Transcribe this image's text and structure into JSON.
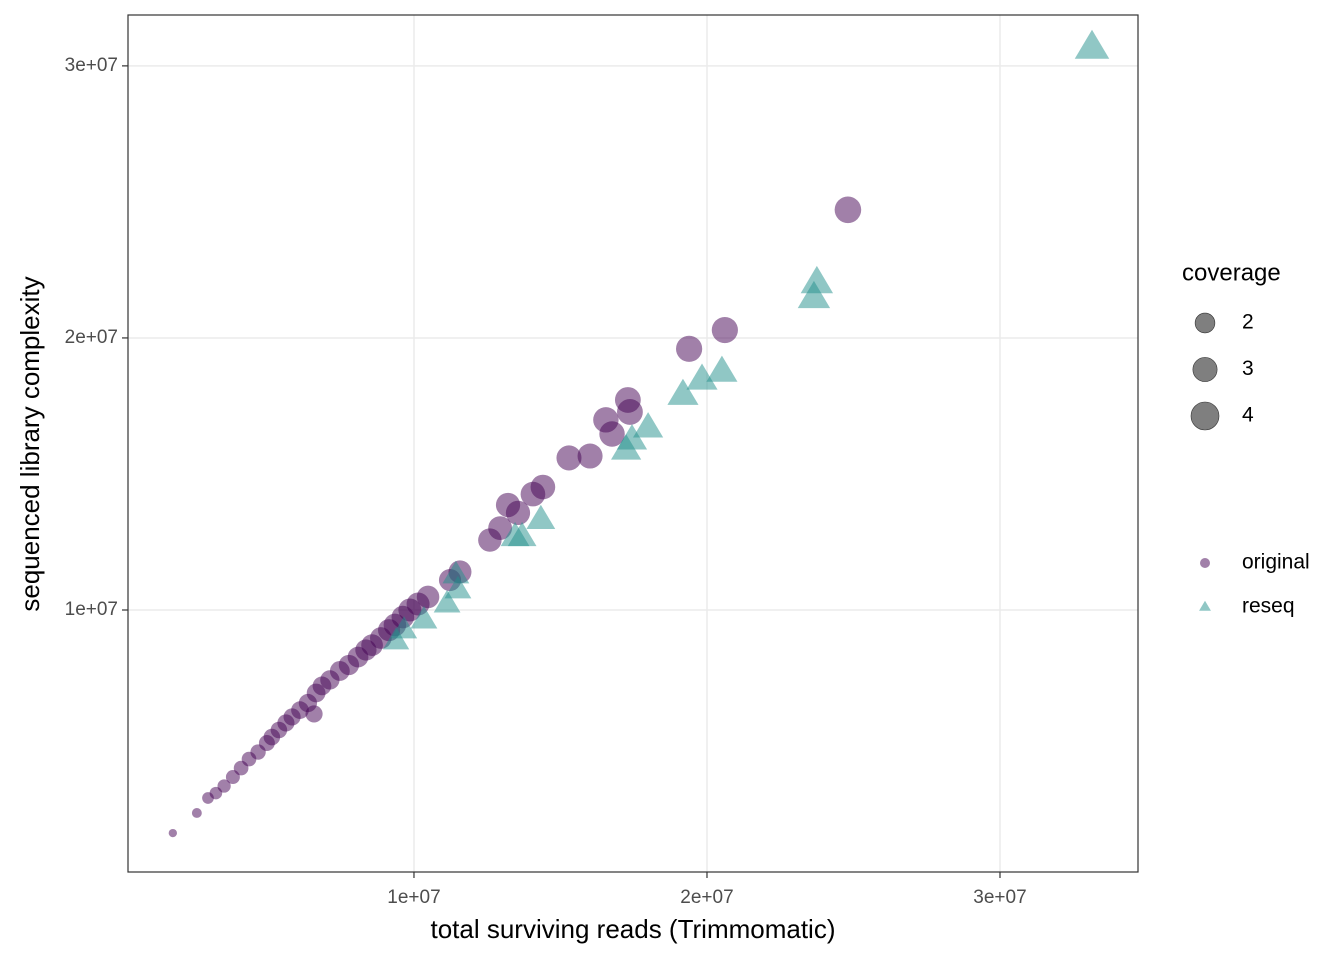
{
  "chart_data": {
    "type": "scatter",
    "x_label": "total surviving reads (Trimmomatic)",
    "y_label": "sequenced library complexity",
    "xlim": [
      240000,
      34710000
    ],
    "ylim": [
      370000,
      31870000
    ],
    "xticks": [
      {
        "value": 10000000,
        "label": "1e+07"
      },
      {
        "value": 20000000,
        "label": "2e+07"
      },
      {
        "value": 30000000,
        "label": "3e+07"
      }
    ],
    "yticks": [
      {
        "value": 10000000,
        "label": "1e+07"
      },
      {
        "value": 20000000,
        "label": "2e+07"
      },
      {
        "value": 30000000,
        "label": "3e+07"
      }
    ],
    "grid": true,
    "size_title": "coverage",
    "size_breaks": [
      2,
      3,
      4
    ],
    "series": [
      {
        "name": "original",
        "color": "#440154",
        "shape": "circle",
        "x": [
          1770000,
          2590000,
          2970000,
          3240000,
          3520000,
          3820000,
          4100000,
          4370000,
          4680000,
          4980000,
          5150000,
          5390000,
          5630000,
          5840000,
          6110000,
          6380000,
          6660000,
          6590000,
          6860000,
          7130000,
          7470000,
          7780000,
          8090000,
          8360000,
          8570000,
          8870000,
          9150000,
          9350000,
          9620000,
          9860000,
          10140000,
          10480000,
          11230000,
          11570000,
          12590000,
          12940000,
          13210000,
          13550000,
          14060000,
          14400000,
          15290000,
          16010000,
          16550000,
          16760000,
          17300000,
          17370000,
          19390000,
          20610000,
          24810000
        ],
        "values": [
          1800000,
          2540000,
          3090000,
          3270000,
          3530000,
          3860000,
          4190000,
          4520000,
          4780000,
          5110000,
          5330000,
          5590000,
          5850000,
          6070000,
          6320000,
          6580000,
          6950000,
          6180000,
          7210000,
          7430000,
          7760000,
          7980000,
          8270000,
          8530000,
          8710000,
          8970000,
          9260000,
          9450000,
          9740000,
          10000000,
          10220000,
          10480000,
          11100000,
          11400000,
          12570000,
          13010000,
          13860000,
          13570000,
          14260000,
          14520000,
          15590000,
          15660000,
          16990000,
          16470000,
          17720000,
          17280000,
          19600000,
          20290000,
          24710000
        ],
        "sizes": [
          0.35,
          0.5,
          0.7,
          0.8,
          0.9,
          1,
          1.1,
          1.1,
          1.2,
          1.3,
          1.4,
          1.4,
          1.5,
          1.5,
          1.6,
          1.7,
          1.8,
          1.5,
          1.8,
          1.9,
          2,
          2.1,
          2.2,
          2.3,
          2.4,
          2.4,
          2.5,
          2.6,
          2.6,
          2.7,
          2.7,
          2.6,
          2.5,
          2.7,
          2.8,
          2.9,
          3,
          3,
          3.1,
          3.1,
          3.2,
          3.2,
          3.3,
          3.3,
          3.4,
          3.4,
          3.5,
          3.5,
          3.6
        ]
      },
      {
        "name": "reseq",
        "color": "#21908C",
        "shape": "triangle",
        "x": [
          9390000,
          9660000,
          10340000,
          11130000,
          11500000,
          11430000,
          13450000,
          13690000,
          14330000,
          17240000,
          17440000,
          17990000,
          19180000,
          19830000,
          20510000,
          23650000,
          23750000,
          33140000
        ],
        "values": [
          8860000,
          9260000,
          9630000,
          10220000,
          10740000,
          11290000,
          12680000,
          12680000,
          13310000,
          15880000,
          16250000,
          16690000,
          17900000,
          18460000,
          18750000,
          21470000,
          22020000,
          30660000
        ],
        "sizes": [
          2.5,
          2.5,
          2.6,
          2.6,
          2.6,
          2.6,
          3,
          3,
          3,
          3.3,
          3.3,
          3.3,
          3.5,
          3.5,
          3.5,
          3.8,
          3.8,
          4.3
        ]
      }
    ]
  }
}
